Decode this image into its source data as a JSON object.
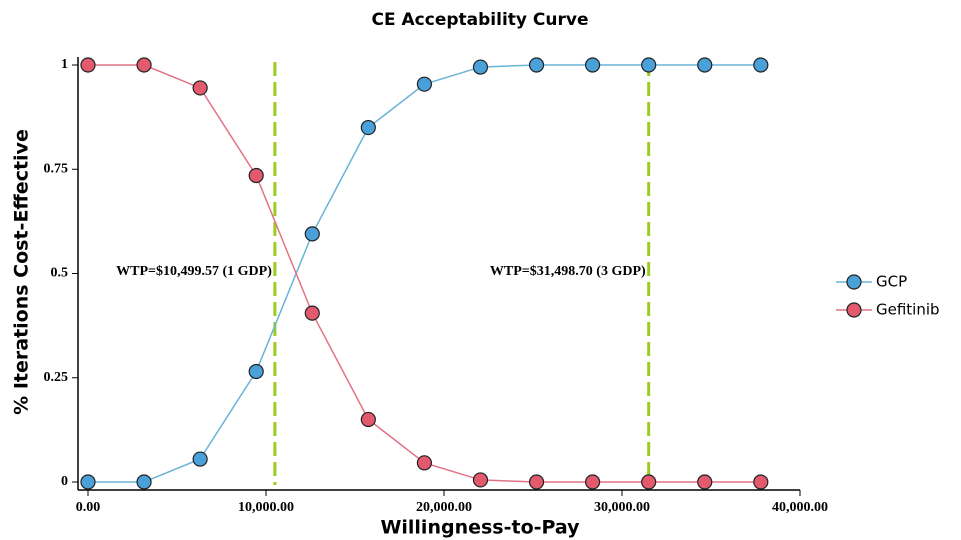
{
  "chart_data": {
    "type": "line",
    "title": "CE Acceptability Curve",
    "x_label": "Willingness-to-Pay",
    "y_label": "% Iterations Cost-Effective",
    "x": [
      0,
      3149.87,
      6299.74,
      9449.61,
      12599.48,
      15749.35,
      18899.22,
      22049.09,
      25198.96,
      28348.83,
      31498.7,
      34648.57,
      37798.44
    ],
    "series": [
      {
        "name": "GCP",
        "color": "#4aa0d8",
        "line_color": "#6ab3d6",
        "values": [
          0,
          0,
          0.055,
          0.265,
          0.595,
          0.85,
          0.954,
          0.995,
          1,
          1,
          1,
          1,
          1
        ]
      },
      {
        "name": "Gefitinib",
        "color": "#e35a6f",
        "line_color": "#e27386",
        "values": [
          1,
          1,
          0.945,
          0.735,
          0.405,
          0.15,
          0.046,
          0.005,
          0,
          0,
          0,
          0,
          0
        ]
      }
    ],
    "xlim": [
      0,
      40000
    ],
    "ylim": [
      0,
      1
    ],
    "xticks": [
      {
        "value": 0,
        "label": "0.00"
      },
      {
        "value": 10000,
        "label": "10,000.00"
      },
      {
        "value": 20000,
        "label": "20,000.00"
      },
      {
        "value": 30000,
        "label": "30,000.00"
      },
      {
        "value": 40000,
        "label": "40,000.00"
      }
    ],
    "yticks": [
      0,
      0.25,
      0.5,
      0.75,
      1
    ],
    "annotations": [
      {
        "x": 10499.57,
        "text": "WTP=$10,499.57 (1 GDP)",
        "color": "#9acd1e"
      },
      {
        "x": 31498.7,
        "text": "WTP=$31,498.70 (3 GDP)",
        "color": "#9acd1e"
      }
    ],
    "legend": "right"
  }
}
